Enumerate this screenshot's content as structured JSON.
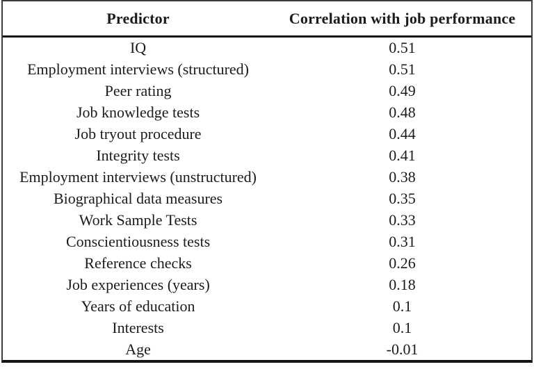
{
  "colors": {
    "background": "#ffffff",
    "text": "#1b1b1d",
    "outer_border": "#3c3c40",
    "heavy_rule": "#131316"
  },
  "table": {
    "columns": [
      "Predictor",
      "Correlation with job performance"
    ],
    "rows": [
      {
        "predictor": "IQ",
        "value": "0.51"
      },
      {
        "predictor": "Employment interviews (structured)",
        "value": "0.51"
      },
      {
        "predictor": "Peer rating",
        "value": "0.49"
      },
      {
        "predictor": "Job knowledge tests",
        "value": "0.48"
      },
      {
        "predictor": "Job tryout procedure",
        "value": "0.44"
      },
      {
        "predictor": "Integrity tests",
        "value": "0.41"
      },
      {
        "predictor": "Employment interviews (unstructured)",
        "value": "0.38"
      },
      {
        "predictor": "Biographical data measures",
        "value": "0.35"
      },
      {
        "predictor": "Work Sample Tests",
        "value": "0.33"
      },
      {
        "predictor": "Conscientiousness tests",
        "value": "0.31"
      },
      {
        "predictor": "Reference checks",
        "value": "0.26"
      },
      {
        "predictor": "Job experiences (years)",
        "value": "0.18"
      },
      {
        "predictor": "Years of education",
        "value": "0.1"
      },
      {
        "predictor": "Interests",
        "value": "0.1"
      },
      {
        "predictor": "Age",
        "value": "-0.01"
      }
    ]
  },
  "chart_data": {
    "type": "table",
    "title": "",
    "columns": [
      "Predictor",
      "Correlation with job performance"
    ],
    "categories": [
      "IQ",
      "Employment interviews (structured)",
      "Peer rating",
      "Job knowledge tests",
      "Job tryout procedure",
      "Integrity tests",
      "Employment interviews (unstructured)",
      "Biographical data measures",
      "Work Sample Tests",
      "Conscientiousness tests",
      "Reference checks",
      "Job experiences (years)",
      "Years of education",
      "Interests",
      "Age"
    ],
    "values": [
      0.51,
      0.51,
      0.49,
      0.48,
      0.44,
      0.41,
      0.38,
      0.35,
      0.33,
      0.31,
      0.26,
      0.18,
      0.1,
      0.1,
      -0.01
    ]
  }
}
